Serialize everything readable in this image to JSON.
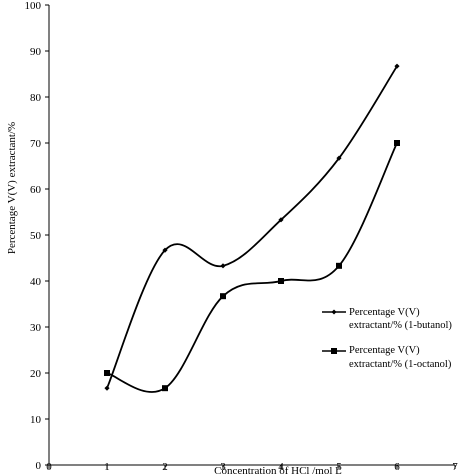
{
  "chart_data": {
    "type": "line",
    "x": [
      1,
      2,
      3,
      4,
      5,
      6
    ],
    "xlim": [
      0,
      7
    ],
    "ylim": [
      0,
      100
    ],
    "xticks": [
      0,
      1,
      2,
      3,
      4,
      5,
      6,
      7
    ],
    "yticks": [
      0,
      10,
      20,
      30,
      40,
      50,
      60,
      70,
      80,
      90,
      100
    ],
    "xlabel": "Concentration of HCl /mol L",
    "ylabel": "Percentage V(V) extractant/%",
    "grid": false,
    "legend_position": "right",
    "series": [
      {
        "name_line1": "Percentage V(V)",
        "name_line2": "extractant/% (1-butanol)",
        "marker": "diamond",
        "color": "#000000",
        "values": [
          16.7,
          46.7,
          43.3,
          53.3,
          66.7,
          86.7
        ]
      },
      {
        "name_line1": "Percentage V(V)",
        "name_line2": "extractant/% (1-octanol)",
        "marker": "square",
        "color": "#000000",
        "values": [
          20,
          16.7,
          36.7,
          40,
          43.3,
          70
        ]
      }
    ]
  }
}
